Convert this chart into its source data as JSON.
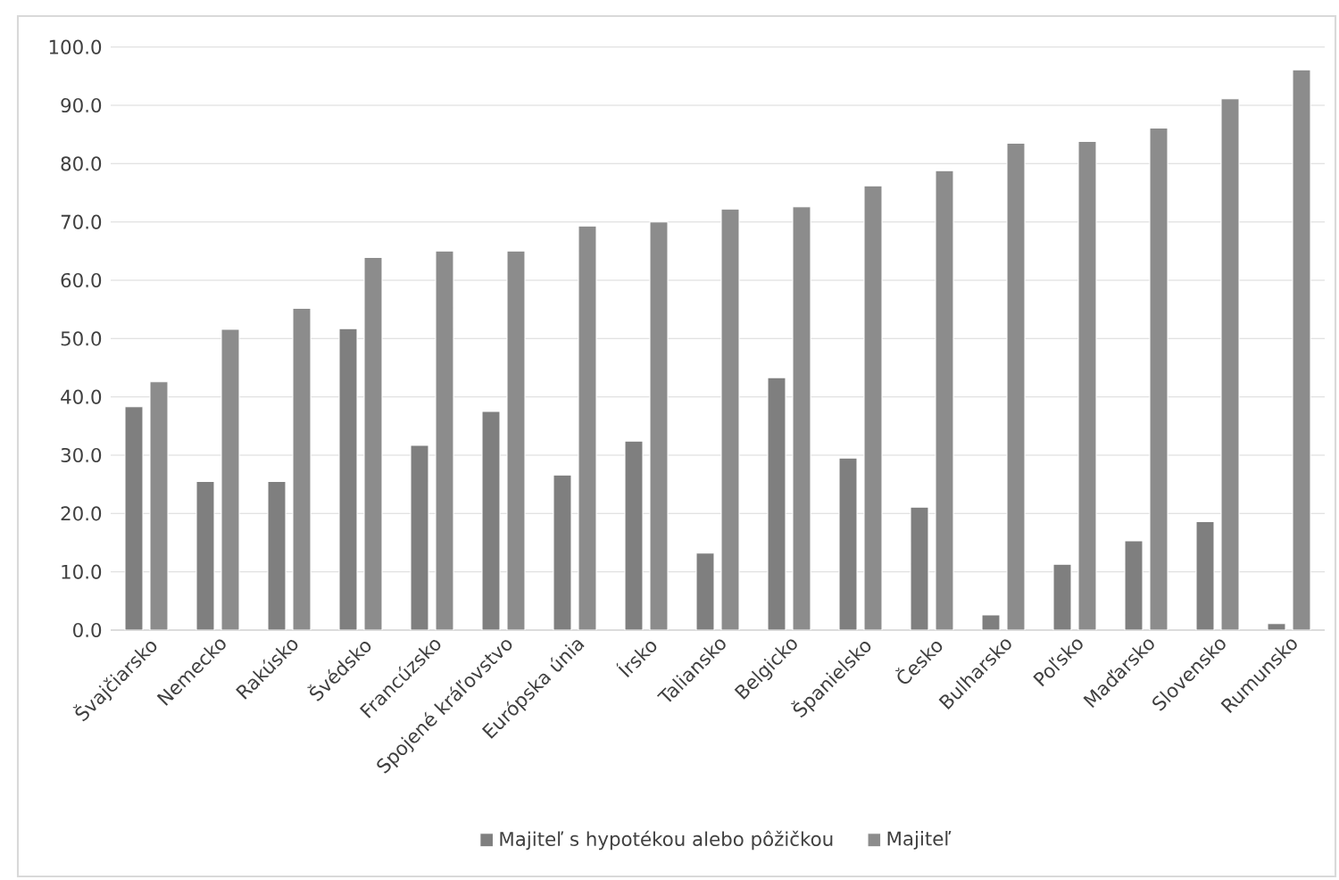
{
  "chart_data": {
    "type": "bar",
    "categories": [
      "Švajčiarsko",
      "Nemecko",
      "Rakúsko",
      "Švédsko",
      "Francúzsko",
      "Spojené kráľovstvo",
      "Európska únia",
      "Írsko",
      "Taliansko",
      "Belgicko",
      "Španielsko",
      "Česko",
      "Bulharsko",
      "Poľsko",
      "Maďarsko",
      "Slovensko",
      "Rumunsko"
    ],
    "series": [
      {
        "name": "Majiteľ s hypotékou alebo pôžičkou",
        "color": "#7f7f7f",
        "values": [
          38.3,
          25.5,
          25.5,
          51.7,
          31.7,
          37.5,
          26.6,
          32.4,
          13.2,
          43.3,
          29.5,
          21.1,
          2.6,
          11.3,
          15.3,
          18.6,
          1.1
        ]
      },
      {
        "name": "Majiteľ",
        "color": "#8c8c8c",
        "values": [
          42.6,
          51.6,
          55.2,
          63.9,
          65.0,
          65.0,
          69.3,
          70.0,
          72.2,
          72.6,
          76.2,
          78.8,
          83.5,
          83.8,
          86.1,
          91.1,
          96.1
        ]
      }
    ],
    "ylim": [
      0,
      100
    ],
    "yticks": [
      {
        "value": 0,
        "label": "0.0"
      },
      {
        "value": 10,
        "label": "10.0"
      },
      {
        "value": 20,
        "label": "20.0"
      },
      {
        "value": 30,
        "label": "30.0"
      },
      {
        "value": 40,
        "label": "40.0"
      },
      {
        "value": 50,
        "label": "50.0"
      },
      {
        "value": 60,
        "label": "60.0"
      },
      {
        "value": 70,
        "label": "70.0"
      },
      {
        "value": 80,
        "label": "80.0"
      },
      {
        "value": 90,
        "label": "90.0"
      },
      {
        "value": 100,
        "label": "100.0"
      }
    ],
    "grid": "y",
    "legend": "bottom"
  }
}
